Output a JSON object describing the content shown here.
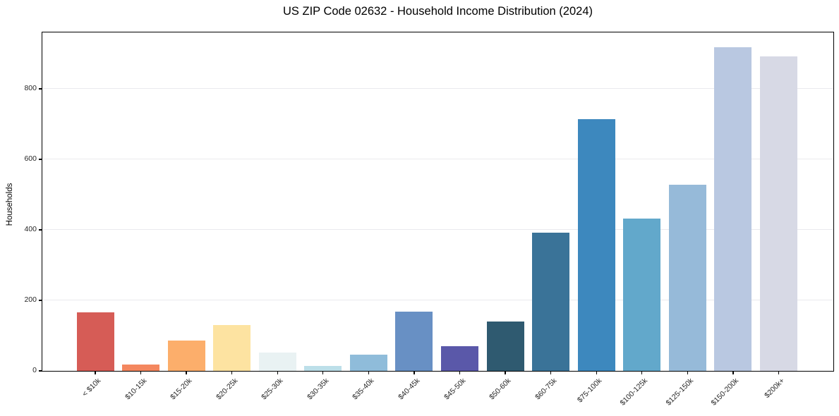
{
  "title": "US ZIP Code 02632 - Household Income Distribution (2024)",
  "chart_data": {
    "type": "bar",
    "title": "US ZIP Code 02632 - Household Income Distribution (2024)",
    "xlabel": "",
    "ylabel": "Households",
    "ylim": [
      0,
      960
    ],
    "yticks": [
      0,
      200,
      400,
      600,
      800
    ],
    "grid": "horizontal",
    "legend": "none",
    "categories": [
      "< $10k",
      "$10-15k",
      "$15-20k",
      "$20-25k",
      "$25-30k",
      "$30-35k",
      "$35-40k",
      "$40-45k",
      "$45-50k",
      "$50-60k",
      "$60-75k",
      "$75-100k",
      "$100-125k",
      "$125-150k",
      "$150-200k",
      "$200k+"
    ],
    "values": [
      167,
      19,
      87,
      131,
      52,
      15,
      47,
      168,
      71,
      140,
      393,
      715,
      433,
      528,
      919,
      892
    ],
    "bar_colors": [
      "#d65c56",
      "#f4875f",
      "#fcae6b",
      "#fde3a1",
      "#e9f2f3",
      "#bcdfe9",
      "#8fbcda",
      "#6890c4",
      "#5a58a9",
      "#2f5a70",
      "#3a7398",
      "#3d88be",
      "#62a8cb",
      "#96bad9",
      "#b9c8e1",
      "#d7d9e5"
    ]
  },
  "colors": {
    "background": "#ffffff",
    "gridline": "#eaeaee",
    "spine": "#000000",
    "tick_label": "#262626",
    "title_text": "#000000"
  }
}
